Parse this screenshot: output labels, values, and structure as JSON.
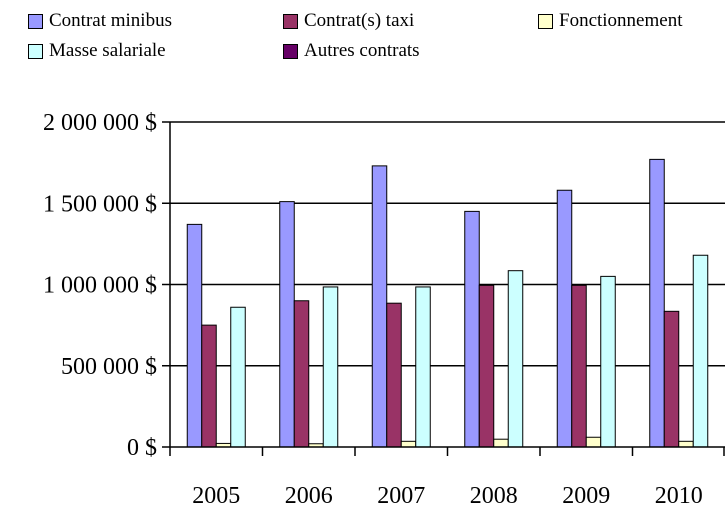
{
  "chart_data": {
    "type": "bar",
    "categories": [
      "2005",
      "2006",
      "2007",
      "2008",
      "2009",
      "2010"
    ],
    "series": [
      {
        "name": "Contrat minibus",
        "color": "#9999ff",
        "values": [
          1370000,
          1510000,
          1730000,
          1450000,
          1580000,
          1770000
        ]
      },
      {
        "name": "Contrat(s) taxi",
        "color": "#993366",
        "values": [
          750000,
          900000,
          885000,
          995000,
          995000,
          835000
        ]
      },
      {
        "name": "Fonctionnement",
        "color": "#ffffcc",
        "values": [
          22000,
          20000,
          35000,
          48000,
          60000,
          35000
        ]
      },
      {
        "name": "Masse salariale",
        "color": "#ccffff",
        "values": [
          860000,
          985000,
          985000,
          1085000,
          1050000,
          1180000
        ]
      },
      {
        "name": "Autres contrats",
        "color": "#660066",
        "values": [
          0,
          0,
          0,
          0,
          0,
          0
        ]
      }
    ],
    "ylim": [
      0,
      2000000
    ],
    "yticks": [
      {
        "value": 0,
        "label": "0 $"
      },
      {
        "value": 500000,
        "label": "500 000 $"
      },
      {
        "value": 1000000,
        "label": "1 000 000 $"
      },
      {
        "value": 1500000,
        "label": "1 500 000 $"
      },
      {
        "value": 2000000,
        "label": "2 000 000 $"
      }
    ],
    "grid": true,
    "legend_position": "top",
    "title": "",
    "xlabel": "",
    "ylabel": ""
  }
}
